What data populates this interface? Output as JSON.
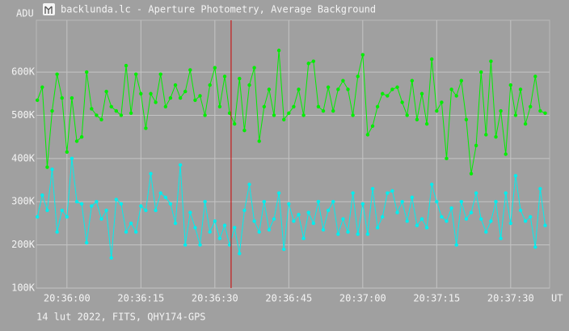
{
  "window_title": "backlunda.lc - Aperture Photometry, Average Background",
  "footer": "14 lut 2022, FITS, QHY174-GPS",
  "chart_data": {
    "type": "line",
    "ylabel": "ADU",
    "xlabel": "UT",
    "xlim": [
      -6.2,
      97.9
    ],
    "ylim": [
      100000,
      720000
    ],
    "xticks": [
      {
        "value": 0,
        "label": "20:36:00"
      },
      {
        "value": 15,
        "label": "20:36:15"
      },
      {
        "value": 30,
        "label": "20:36:30"
      },
      {
        "value": 45,
        "label": "20:36:45"
      },
      {
        "value": 60,
        "label": "20:37:00"
      },
      {
        "value": 75,
        "label": "20:37:15"
      },
      {
        "value": 90,
        "label": "20:37:30"
      }
    ],
    "yticks": [
      {
        "value": 100000,
        "label": "100K"
      },
      {
        "value": 200000,
        "label": "200K"
      },
      {
        "value": 300000,
        "label": "300K"
      },
      {
        "value": 400000,
        "label": "400K"
      },
      {
        "value": 500000,
        "label": "500K"
      },
      {
        "value": 600000,
        "label": "600K"
      }
    ],
    "grid": true,
    "cursor": {
      "x": 33.3,
      "color": "#cc0000"
    },
    "x": [
      -6,
      -5,
      -4,
      -3,
      -2,
      -1,
      0,
      1,
      2,
      3,
      4,
      5,
      6,
      7,
      8,
      9,
      10,
      11,
      12,
      13,
      14,
      15,
      16,
      17,
      18,
      19,
      20,
      21,
      22,
      23,
      24,
      25,
      26,
      27,
      28,
      29,
      30,
      31,
      32,
      33,
      34,
      35,
      36,
      37,
      38,
      39,
      40,
      41,
      42,
      43,
      44,
      45,
      46,
      47,
      48,
      49,
      50,
      51,
      52,
      53,
      54,
      55,
      56,
      57,
      58,
      59,
      60,
      61,
      62,
      63,
      64,
      65,
      66,
      67,
      68,
      69,
      70,
      71,
      72,
      73,
      74,
      75,
      76,
      77,
      78,
      79,
      80,
      81,
      82,
      83,
      84,
      85,
      86,
      87,
      88,
      89,
      90,
      91,
      92,
      93,
      94,
      95,
      96,
      97
    ],
    "series": [
      {
        "color": "#00ee00",
        "values": [
          535000,
          565000,
          380000,
          510000,
          595000,
          540000,
          415000,
          540000,
          440000,
          450000,
          600000,
          515000,
          500000,
          490000,
          555000,
          520000,
          510000,
          500000,
          615000,
          505000,
          595000,
          550000,
          470000,
          550000,
          530000,
          595000,
          520000,
          540000,
          570000,
          540000,
          555000,
          605000,
          535000,
          545000,
          500000,
          570000,
          610000,
          520000,
          590000,
          505000,
          480000,
          585000,
          465000,
          570000,
          610000,
          440000,
          520000,
          560000,
          500000,
          650000,
          490000,
          505000,
          520000,
          560000,
          500000,
          620000,
          625000,
          520000,
          510000,
          565000,
          510000,
          560000,
          580000,
          560000,
          500000,
          590000,
          640000,
          455000,
          475000,
          520000,
          550000,
          545000,
          560000,
          565000,
          530000,
          500000,
          580000,
          490000,
          550000,
          480000,
          630000,
          510000,
          530000,
          400000,
          560000,
          545000,
          580000,
          490000,
          365000,
          430000,
          600000,
          455000,
          625000,
          450000,
          510000,
          410000,
          570000,
          500000,
          560000,
          480000,
          520000,
          590000,
          510000,
          505000
        ]
      },
      {
        "color": "#00eeee",
        "values": [
          265000,
          315000,
          280000,
          375000,
          230000,
          280000,
          265000,
          400000,
          300000,
          295000,
          205000,
          290000,
          300000,
          260000,
          280000,
          170000,
          305000,
          295000,
          230000,
          250000,
          230000,
          290000,
          280000,
          365000,
          280000,
          320000,
          310000,
          295000,
          250000,
          385000,
          200000,
          275000,
          240000,
          200000,
          300000,
          230000,
          255000,
          215000,
          245000,
          200000,
          240000,
          180000,
          280000,
          340000,
          255000,
          230000,
          300000,
          235000,
          260000,
          320000,
          190000,
          295000,
          255000,
          270000,
          215000,
          275000,
          250000,
          300000,
          235000,
          280000,
          300000,
          225000,
          260000,
          230000,
          320000,
          225000,
          295000,
          225000,
          330000,
          240000,
          265000,
          320000,
          325000,
          275000,
          300000,
          255000,
          310000,
          245000,
          260000,
          240000,
          340000,
          300000,
          265000,
          255000,
          285000,
          200000,
          300000,
          260000,
          275000,
          320000,
          260000,
          230000,
          255000,
          300000,
          215000,
          320000,
          250000,
          360000,
          280000,
          255000,
          265000,
          195000,
          330000,
          245000
        ]
      }
    ]
  }
}
